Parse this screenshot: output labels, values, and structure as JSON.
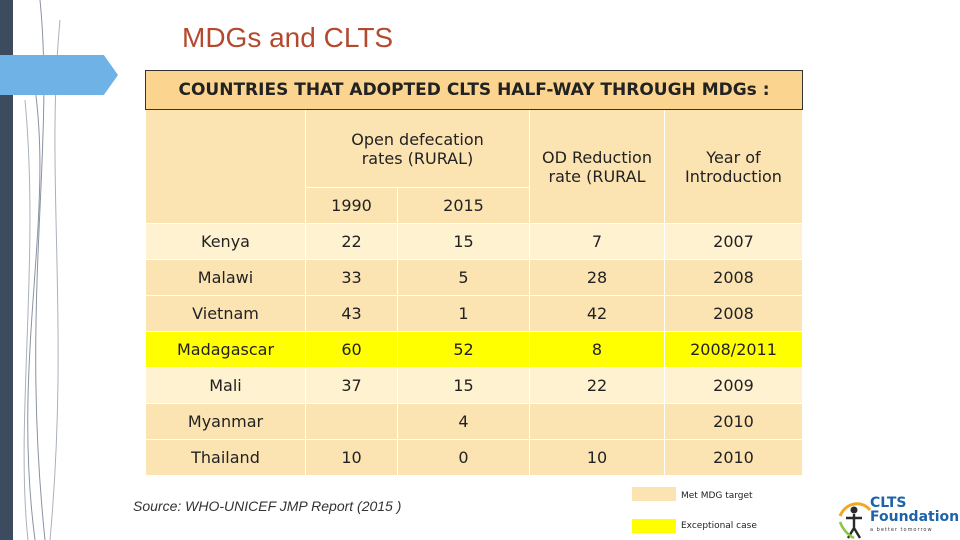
{
  "slide": {
    "title": "MDGs and CLTS",
    "table_caption": "COUNTRIES THAT ADOPTED CLTS HALF-WAY THROUGH MDGs :",
    "headers": {
      "open_defecation": "Open defecation rates (RURAL)",
      "od_reduction": "OD Reduction rate (RURAL",
      "year_intro": "Year of Introduction",
      "year_1990": "1990",
      "year_2015": "2015"
    },
    "rows": [
      {
        "country": "Kenya",
        "y1990": "22",
        "y2015": "15",
        "reduction": "7",
        "year": "2007",
        "highlight": false
      },
      {
        "country": "Malawi",
        "y1990": "33",
        "y2015": "5",
        "reduction": "28",
        "year": "2008",
        "highlight": false
      },
      {
        "country": "Vietnam",
        "y1990": "43",
        "y2015": "1",
        "reduction": "42",
        "year": "2008",
        "highlight": false
      },
      {
        "country": "Madagascar",
        "y1990": "60",
        "y2015": "52",
        "reduction": "8",
        "year": "2008/2011",
        "highlight": true
      },
      {
        "country": "Mali",
        "y1990": "37",
        "y2015": "15",
        "reduction": "22",
        "year": "2009",
        "highlight": false
      },
      {
        "country": "Myanmar",
        "y1990": "",
        "y2015": "4",
        "reduction": "",
        "year": "2010",
        "highlight": false
      },
      {
        "country": "Thailand",
        "y1990": "10",
        "y2015": "0",
        "reduction": "10",
        "year": "2010",
        "highlight": false
      }
    ],
    "source": "Source: WHO-UNICEF JMP Report (2015 )",
    "legend": [
      {
        "label": "Met MDG target",
        "color": "#fbe3b2"
      },
      {
        "label": "Exceptional case",
        "color": "#ffff00"
      }
    ],
    "logo": {
      "name_line1": "CLTS",
      "name_line2": "Foundation",
      "tagline": "a better tomorrow"
    },
    "colors": {
      "title": "#b34a30",
      "caption_bg": "#fbd48f",
      "row_light": "#fef2d0",
      "row_dark": "#fbe3b2",
      "highlight": "#ffff00",
      "side_bar": "#3d4b5e",
      "accent": "#6fb2e6"
    }
  }
}
